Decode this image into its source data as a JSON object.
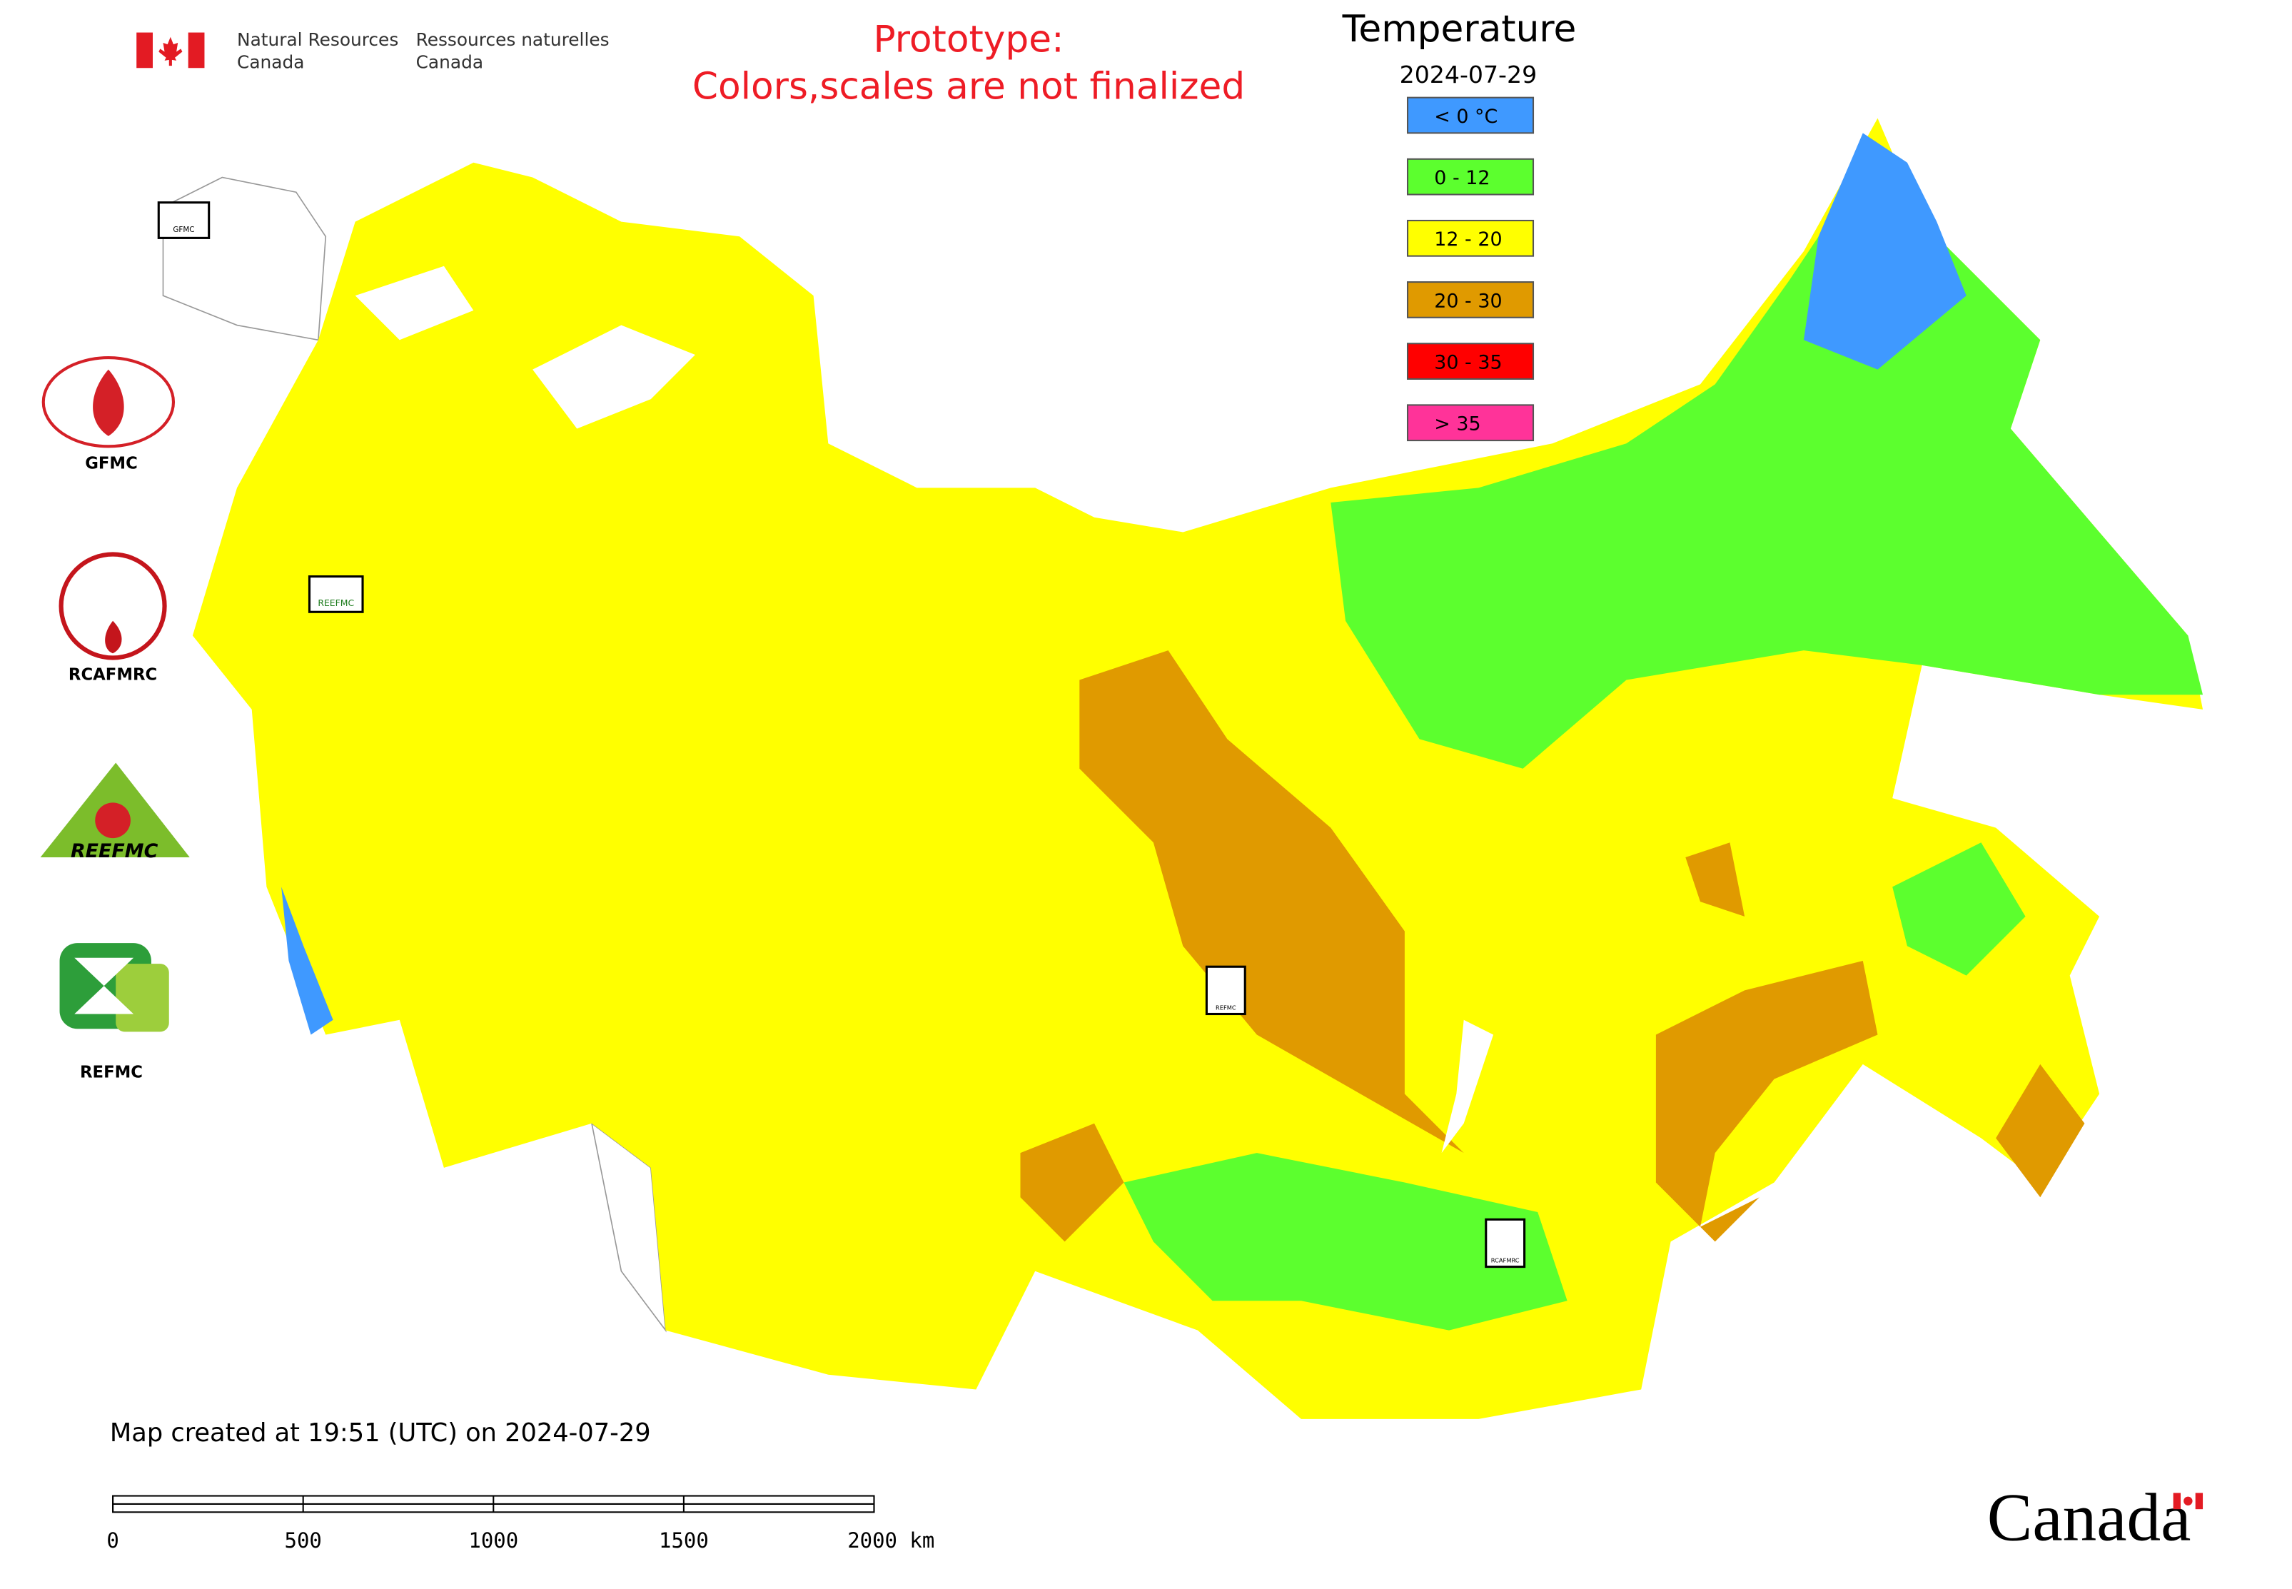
{
  "header": {
    "agency_en": [
      "Natural Resources",
      "Canada"
    ],
    "agency_fr": [
      "Ressources naturelles",
      "Canada"
    ],
    "notice": [
      "Prototype:",
      "Colors,scales are not finalized"
    ]
  },
  "legend": {
    "title": "Temperature",
    "date": "2024-07-29",
    "items": [
      {
        "label": "< 0 °C",
        "color": "#3f99ff"
      },
      {
        "label": "0 - 12",
        "color": "#5cff2e"
      },
      {
        "label": "12 - 20",
        "color": "#ffff00"
      },
      {
        "label": "20 - 30",
        "color": "#e09a00"
      },
      {
        "label": "30 - 35",
        "color": "#ff0000"
      },
      {
        "label": "> 35",
        "color": "#ff3399"
      }
    ]
  },
  "logos": [
    "GFMC",
    "RCAFMRC",
    "REEFMC",
    "REFMC"
  ],
  "map_logos": [
    "GFMC",
    "REEFMC",
    "REFMC",
    "RCAFMRC"
  ],
  "footer": {
    "created": "Map created at 19:51 (UTC) on 2024-07-29",
    "wordmark": "Canada"
  },
  "scale_bar": {
    "ticks": [
      "0",
      "500",
      "1000",
      "1500",
      "2000 km"
    ]
  }
}
